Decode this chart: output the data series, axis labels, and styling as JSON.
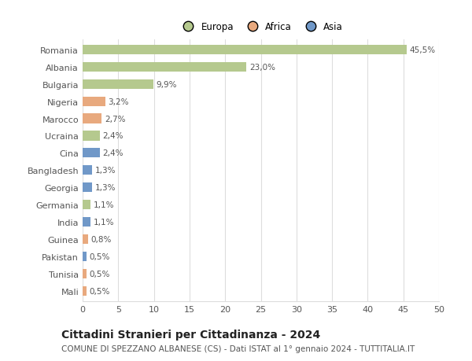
{
  "categories": [
    "Romania",
    "Albania",
    "Bulgaria",
    "Nigeria",
    "Marocco",
    "Ucraina",
    "Cina",
    "Bangladesh",
    "Georgia",
    "Germania",
    "India",
    "Guinea",
    "Pakistan",
    "Tunisia",
    "Mali"
  ],
  "values": [
    45.5,
    23.0,
    9.9,
    3.2,
    2.7,
    2.4,
    2.4,
    1.3,
    1.3,
    1.1,
    1.1,
    0.8,
    0.5,
    0.5,
    0.5
  ],
  "labels": [
    "45,5%",
    "23,0%",
    "9,9%",
    "3,2%",
    "2,7%",
    "2,4%",
    "2,4%",
    "1,3%",
    "1,3%",
    "1,1%",
    "1,1%",
    "0,8%",
    "0,5%",
    "0,5%",
    "0,5%"
  ],
  "continent": [
    "Europa",
    "Europa",
    "Europa",
    "Africa",
    "Africa",
    "Europa",
    "Asia",
    "Asia",
    "Asia",
    "Europa",
    "Asia",
    "Africa",
    "Asia",
    "Africa",
    "Africa"
  ],
  "colors": {
    "Europa": "#b5c98e",
    "Africa": "#e8a97e",
    "Asia": "#7098c8"
  },
  "legend_labels": [
    "Europa",
    "Africa",
    "Asia"
  ],
  "title": "Cittadini Stranieri per Cittadinanza - 2024",
  "subtitle": "COMUNE DI SPEZZANO ALBANESE (CS) - Dati ISTAT al 1° gennaio 2024 - TUTTITALIA.IT",
  "xlim": [
    0,
    50
  ],
  "xticks": [
    0,
    5,
    10,
    15,
    20,
    25,
    30,
    35,
    40,
    45,
    50
  ],
  "background_color": "#ffffff",
  "grid_color": "#dddddd",
  "bar_height": 0.55,
  "label_fontsize": 7.5,
  "title_fontsize": 10,
  "subtitle_fontsize": 7.5,
  "tick_fontsize": 8,
  "legend_fontsize": 8.5
}
